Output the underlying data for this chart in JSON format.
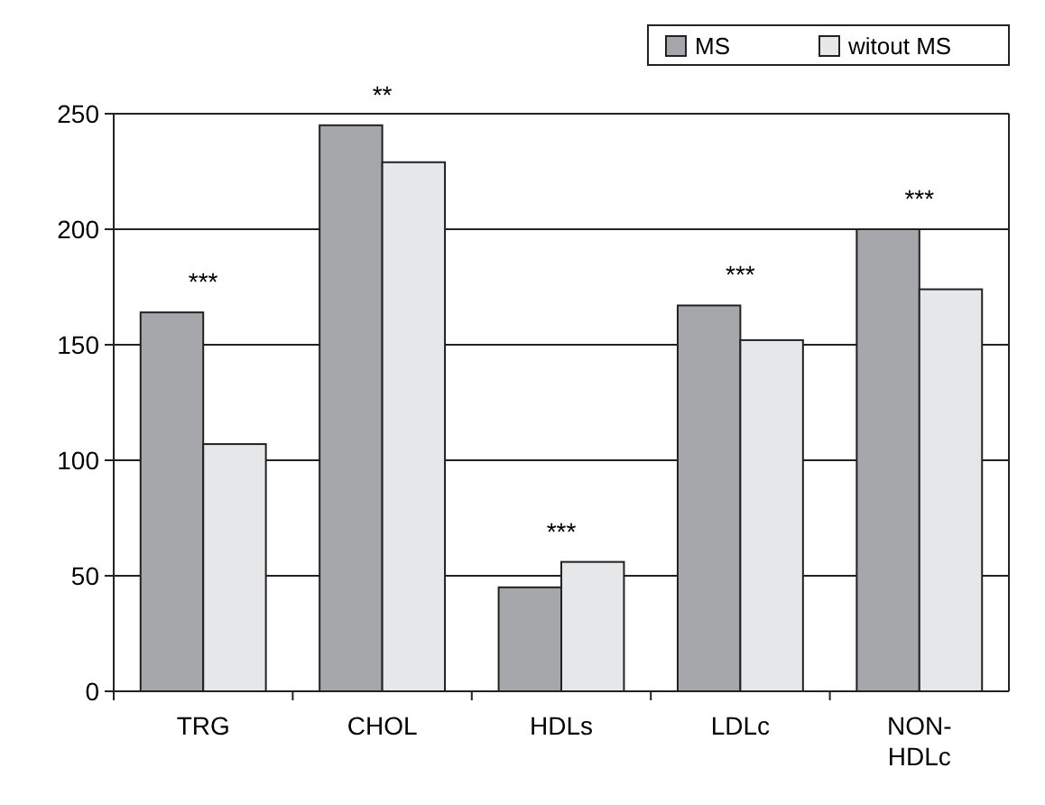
{
  "chart_data": {
    "type": "bar",
    "categories": [
      "TRG",
      "CHOL",
      "HDLs",
      "LDLc",
      "NON-HDLc"
    ],
    "series": [
      {
        "name": "MS",
        "color": "#a6a7aa",
        "values": [
          164,
          245,
          45,
          167,
          200
        ]
      },
      {
        "name": "witout MS",
        "color": "#e6e7e8",
        "values": [
          107,
          229,
          56,
          152,
          174
        ]
      }
    ],
    "ylim": [
      0,
      250
    ],
    "yticks": [
      0,
      50,
      100,
      150,
      200,
      250
    ],
    "grid": "y",
    "legend": "top right",
    "annotations": [
      {
        "text": "***",
        "x": "TRG",
        "y": 164
      },
      {
        "text": "**",
        "x": "CHOL",
        "y": 245
      },
      {
        "text": "***",
        "x": "HDLs",
        "y": 56
      },
      {
        "text": "***",
        "x": "LDLc",
        "y": 167
      },
      {
        "text": "***",
        "x": "NON-HDLc",
        "y": 200
      }
    ]
  }
}
